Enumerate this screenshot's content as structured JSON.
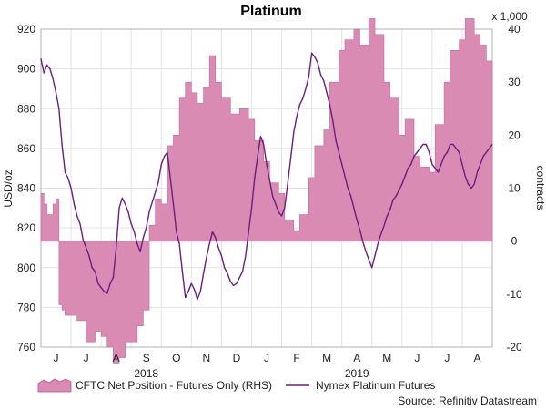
{
  "chart_data": {
    "type": "line",
    "title": "Platinum",
    "left_axis": {
      "label": "USD/oz",
      "range": [
        760,
        920
      ],
      "ticks": [
        760,
        780,
        800,
        820,
        840,
        860,
        880,
        900,
        920
      ]
    },
    "right_axis": {
      "label": "contracts",
      "unit_note": "x 1,000",
      "range": [
        -20,
        40
      ],
      "ticks": [
        -20,
        -10,
        0,
        10,
        20,
        30,
        40
      ]
    },
    "x_months": [
      "J",
      "J",
      "A",
      "S",
      "O",
      "N",
      "D",
      "J",
      "F",
      "M",
      "A",
      "M",
      "J",
      "J",
      "A"
    ],
    "year_labels": [
      {
        "label": "2018",
        "month_index": 3
      },
      {
        "label": "2019",
        "month_index": 10
      }
    ],
    "x_range_months": [
      0,
      15
    ],
    "series": [
      {
        "name": "CFTC Net Position - Futures Only (RHS)",
        "type": "area",
        "axis": "right",
        "color": "#d98bb3",
        "x": [
          0.0,
          0.1,
          0.2,
          0.4,
          0.5,
          0.6,
          0.7,
          0.8,
          1.0,
          1.2,
          1.5,
          1.8,
          2.0,
          2.2,
          2.4,
          2.6,
          2.8,
          3.0,
          3.2,
          3.4,
          3.6,
          3.8,
          4.0,
          4.2,
          4.4,
          4.6,
          4.8,
          5.0,
          5.2,
          5.4,
          5.6,
          5.8,
          6.0,
          6.3,
          6.6,
          6.9,
          7.1,
          7.4,
          7.6,
          7.9,
          8.1,
          8.4,
          8.6,
          8.9,
          9.1,
          9.4,
          9.6,
          9.9,
          10.1,
          10.4,
          10.6,
          10.9,
          11.1,
          11.4,
          11.6,
          11.9,
          12.1,
          12.4,
          12.6,
          12.9,
          13.1,
          13.4,
          13.6,
          13.9,
          14.1,
          14.4,
          14.6,
          14.8,
          15.0
        ],
        "values": [
          9,
          7,
          5,
          7,
          8,
          -12,
          -13,
          -14,
          -14,
          -15,
          -19,
          -17,
          -18,
          -20,
          -23,
          -22,
          -19,
          -19,
          -16,
          -13,
          3,
          8,
          7,
          18,
          20,
          27,
          30,
          28,
          26,
          29,
          35,
          30,
          27,
          24,
          25,
          23,
          19,
          15,
          11,
          9,
          4,
          2,
          5,
          12,
          18,
          21,
          30,
          36,
          38,
          40,
          37,
          42,
          39,
          30,
          27,
          20,
          23,
          16,
          14,
          13,
          22,
          30,
          36,
          38,
          42,
          39,
          37,
          34,
          30
        ]
      },
      {
        "name": "Nymex Platinum Futures",
        "type": "line",
        "axis": "left",
        "color": "#6b1f7e",
        "x": [
          0.0,
          0.1,
          0.2,
          0.3,
          0.4,
          0.5,
          0.6,
          0.7,
          0.8,
          0.9,
          1.0,
          1.1,
          1.2,
          1.3,
          1.4,
          1.5,
          1.6,
          1.7,
          1.8,
          1.9,
          2.0,
          2.1,
          2.2,
          2.3,
          2.4,
          2.5,
          2.6,
          2.7,
          2.8,
          2.9,
          3.0,
          3.1,
          3.2,
          3.3,
          3.4,
          3.5,
          3.6,
          3.7,
          3.8,
          3.9,
          4.0,
          4.1,
          4.2,
          4.3,
          4.4,
          4.5,
          4.6,
          4.7,
          4.8,
          4.9,
          5.0,
          5.1,
          5.2,
          5.3,
          5.4,
          5.5,
          5.6,
          5.7,
          5.8,
          5.9,
          6.0,
          6.1,
          6.2,
          6.3,
          6.4,
          6.5,
          6.6,
          6.7,
          6.8,
          6.9,
          7.0,
          7.1,
          7.2,
          7.3,
          7.4,
          7.5,
          7.6,
          7.7,
          7.8,
          7.9,
          8.0,
          8.1,
          8.2,
          8.3,
          8.4,
          8.5,
          8.6,
          8.7,
          8.8,
          8.9,
          9.0,
          9.1,
          9.2,
          9.3,
          9.4,
          9.5,
          9.6,
          9.7,
          9.8,
          9.9,
          10.0,
          10.1,
          10.2,
          10.3,
          10.4,
          10.5,
          10.6,
          10.7,
          10.8,
          10.9,
          11.0,
          11.1,
          11.2,
          11.3,
          11.4,
          11.5,
          11.6,
          11.7,
          11.8,
          11.9,
          12.0,
          12.1,
          12.2,
          12.3,
          12.4,
          12.5,
          12.6,
          12.7,
          12.8,
          12.9,
          13.0,
          13.1,
          13.2,
          13.3,
          13.4,
          13.5,
          13.6,
          13.7,
          13.8,
          13.9,
          14.0,
          14.1,
          14.2,
          14.3,
          14.4,
          14.5,
          14.6,
          14.7,
          14.8,
          14.9,
          15.0
        ],
        "values": [
          905,
          898,
          902,
          900,
          895,
          888,
          880,
          862,
          848,
          845,
          840,
          832,
          826,
          822,
          814,
          810,
          806,
          800,
          798,
          792,
          790,
          788,
          787,
          792,
          795,
          810,
          830,
          835,
          832,
          828,
          822,
          818,
          812,
          808,
          815,
          820,
          828,
          833,
          838,
          843,
          852,
          856,
          858,
          845,
          832,
          818,
          812,
          798,
          785,
          788,
          792,
          789,
          784,
          788,
          797,
          805,
          812,
          818,
          815,
          810,
          806,
          800,
          797,
          793,
          791,
          792,
          795,
          798,
          806,
          818,
          830,
          845,
          856,
          866,
          862,
          852,
          844,
          836,
          832,
          828,
          826,
          830,
          842,
          855,
          868,
          876,
          882,
          885,
          890,
          896,
          908,
          906,
          903,
          897,
          894,
          888,
          882,
          874,
          864,
          858,
          852,
          846,
          840,
          836,
          830,
          824,
          819,
          813,
          808,
          804,
          800,
          806,
          812,
          817,
          821,
          826,
          829,
          834,
          836,
          839,
          842,
          846,
          850,
          852,
          856,
          858,
          860,
          862,
          862,
          858,
          852,
          850,
          848,
          852,
          856,
          858,
          862,
          862,
          860,
          858,
          852,
          846,
          842,
          840,
          842,
          848,
          852,
          856,
          858,
          860,
          862
        ]
      }
    ],
    "legend_position": "bottom",
    "grid": true
  },
  "source": "Source: Refinitiv Datastream"
}
